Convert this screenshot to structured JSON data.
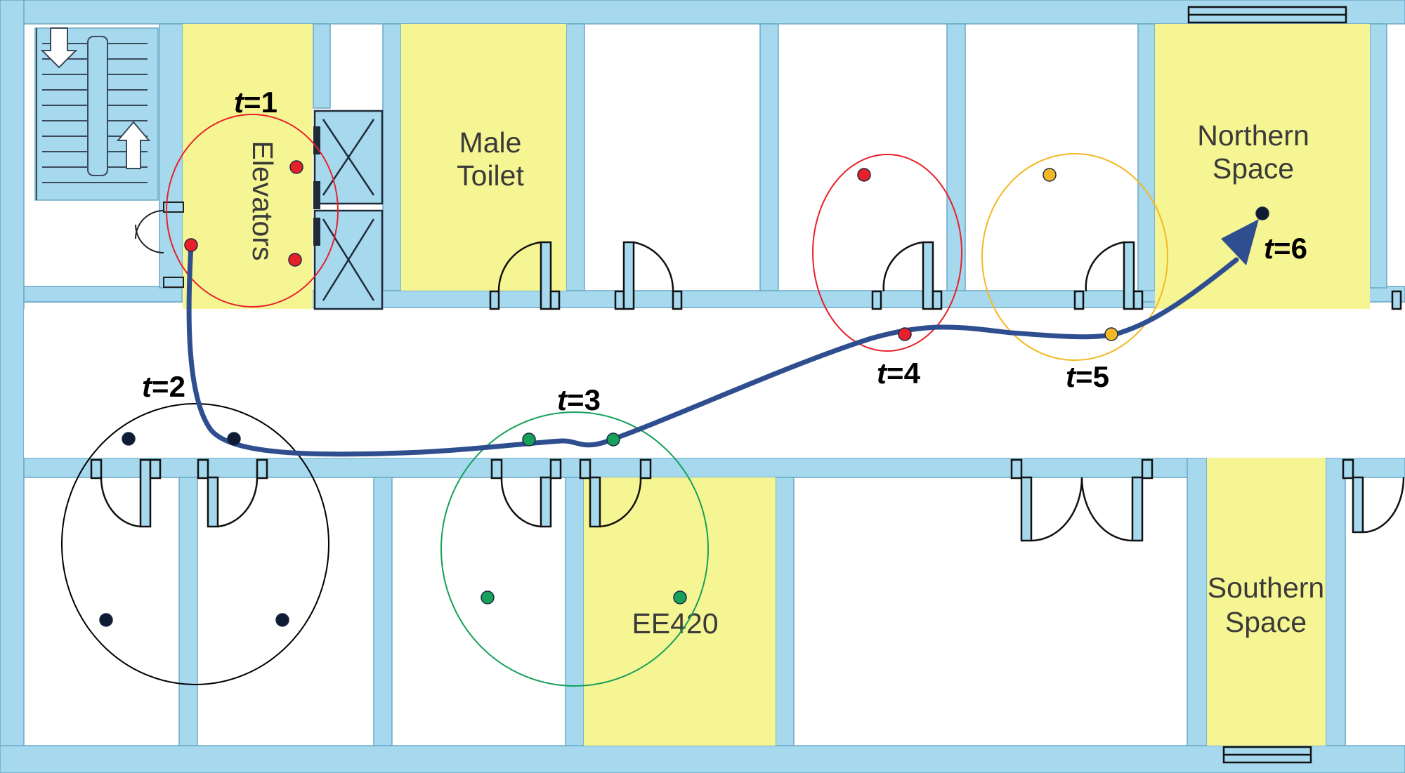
{
  "colors": {
    "wall": "#a6d8ee",
    "wall_edge": "#6aa9c6",
    "highlight": "#f6f593",
    "path": "#2f4e8f",
    "red": "#e8202a",
    "black": "#0d1b33",
    "green": "#16a05a",
    "orange": "#f4b824"
  },
  "rooms": {
    "elevators": "Elevators",
    "male_toilet": [
      "Male",
      "Toilet"
    ],
    "northern_space": [
      "Northern",
      "Space"
    ],
    "southern_space": [
      "Southern",
      "Space"
    ],
    "ee420": "EE420"
  },
  "timesteps": [
    {
      "var": "t",
      "eq": "=1",
      "color": "red"
    },
    {
      "var": "t",
      "eq": "=2",
      "color": "black"
    },
    {
      "var": "t",
      "eq": "=3",
      "color": "green"
    },
    {
      "var": "t",
      "eq": "=4",
      "color": "red"
    },
    {
      "var": "t",
      "eq": "=5",
      "color": "orange"
    },
    {
      "var": "t",
      "eq": "=6",
      "color": "black"
    }
  ]
}
